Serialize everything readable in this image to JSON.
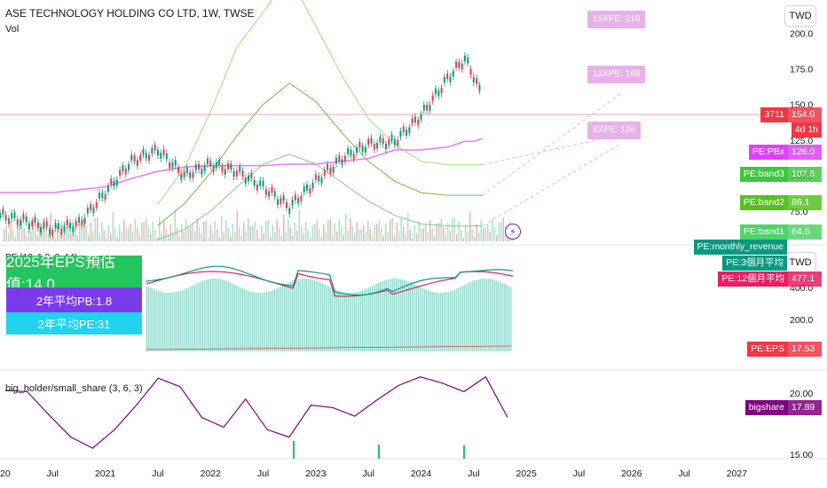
{
  "header": {
    "title": "ASE TECHNOLOGY HOLDING CO LTD, 1W, TWSE",
    "vol_label": "Vol"
  },
  "currency": "TWD",
  "indicator2_title": "PE (12, 1.8, 3, 14)",
  "indicator3_title": "big_holder/small_share (3, 6, 3)",
  "table": {
    "eps": "2025年EPS預估值:14.0",
    "pb": "2年平均PB:1.8",
    "pe": "2年平均PE:31"
  },
  "pe_targets": [
    {
      "label": "15XPE: 210"
    },
    {
      "label": "12XPE: 168"
    },
    {
      "label": "9XPE: 126"
    }
  ],
  "price_labels": [
    {
      "name": "3711",
      "value": "154.0",
      "sub": "4d 1h",
      "color": "#f23645"
    },
    {
      "name": "PE:PBx",
      "value": "126.0",
      "color": "#e040fb"
    },
    {
      "name": "PE:band3",
      "value": "107.6",
      "color": "#3ec73e"
    },
    {
      "name": "PE:band2",
      "value": "86.1",
      "color": "#56c21f"
    },
    {
      "name": "PE:band1",
      "value": "64.6",
      "color": "#4fd36a"
    }
  ],
  "pe_labels": [
    {
      "name": "PE:monthly_revenue",
      "color": "#089981"
    },
    {
      "name": "PE:3個月平均",
      "color": "#089981"
    },
    {
      "name": "PE:12個月平均",
      "value": "477.1",
      "color": "#e91e63"
    },
    {
      "name": "PE:EPS",
      "value": "17.53",
      "color": "#f23645"
    }
  ],
  "bigshare_label": {
    "name": "bigshare",
    "value": "17.89",
    "color": "#800080"
  },
  "y_ticks_main": [
    "200.0",
    "175.0",
    "150.0",
    "125.0",
    "100.0",
    "75.0"
  ],
  "y_ticks_pe": [
    "400.0",
    "200.0"
  ],
  "y_ticks_bh": [
    "20.00",
    "15.00"
  ],
  "x_ticks": [
    "2020",
    "Jul",
    "2021",
    "Jul",
    "2022",
    "Jul",
    "2023",
    "Jul",
    "2024",
    "Jul",
    "2025",
    "Jul",
    "2026",
    "Jul",
    "2027"
  ],
  "chart_data": {
    "type": "line",
    "title": "ASE TECHNOLOGY HOLDING CO LTD, 1W, TWSE",
    "x": [
      "2020-01",
      "2020-04",
      "2020-07",
      "2020-10",
      "2021-01",
      "2021-04",
      "2021-07",
      "2021-10",
      "2022-01",
      "2022-04",
      "2022-07",
      "2022-10",
      "2023-01",
      "2023-04",
      "2023-07",
      "2023-10",
      "2024-01",
      "2024-04",
      "2024-06",
      "2024-07",
      "2024-08"
    ],
    "series": [
      {
        "values": [
          72,
          68,
          62,
          66,
          88,
          110,
          118,
          100,
          108,
          103,
          92,
          78,
          96,
          112,
          122,
          124,
          142,
          168,
          182,
          170,
          154
        ]
      },
      {
        "name": "PE:band1",
        "values": [
          null,
          null,
          null,
          null,
          null,
          null,
          55,
          62,
          75,
          92,
          108,
          115,
          108,
          95,
          82,
          72,
          66,
          64.6,
          64.6,
          64.6,
          64.6
        ]
      },
      {
        "name": "PE:band2",
        "values": [
          null,
          null,
          null,
          null,
          null,
          null,
          65,
          80,
          102,
          128,
          150,
          165,
          152,
          130,
          110,
          96,
          88,
          86.1,
          86.1,
          86.1,
          86.1
        ]
      },
      {
        "name": "PE:band3",
        "values": [
          null,
          null,
          null,
          null,
          null,
          null,
          80,
          105,
          145,
          190,
          215,
          240,
          205,
          170,
          140,
          122,
          110,
          107.6,
          107.6,
          107.6,
          107.6
        ]
      },
      {
        "name": "PE:PBx",
        "values": [
          88,
          88,
          88,
          90,
          92,
          98,
          103,
          106,
          107,
          107,
          107,
          108,
          108,
          110,
          112,
          118,
          118,
          120,
          124,
          124,
          126
        ]
      }
    ],
    "pe_subplot": {
      "name": "PE:12個月平均",
      "last": 477.1,
      "eps_last": 17.53
    },
    "bigshare_subplot": {
      "name": "bigshare",
      "last": 17.89,
      "values": [
        20.2,
        20.1,
        18.2,
        16.4,
        15.5,
        17.0,
        19.0,
        21.2,
        20.5,
        18.0,
        17.2,
        19.5,
        17.0,
        16.4,
        19.0,
        18.8,
        18.1,
        19.4,
        20.6,
        21.3,
        20.8,
        20.1,
        21.3,
        18.0
      ]
    },
    "y_range": [
      55,
      215
    ]
  }
}
